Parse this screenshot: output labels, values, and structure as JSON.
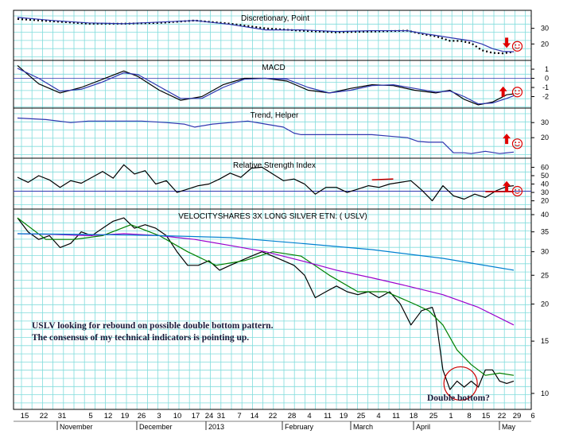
{
  "chart_data": [
    {
      "type": "line",
      "title": "Discretionary, Point",
      "y_ticks": [
        20,
        30
      ],
      "ylim": [
        11,
        40
      ],
      "series": [
        {
          "role": "dotted",
          "color": "#000000",
          "x": [
            0,
            10,
            20,
            30,
            40,
            50,
            60,
            70,
            80,
            90,
            100,
            110,
            115,
            118,
            122,
            125,
            128,
            131,
            134,
            137,
            140
          ],
          "y": [
            36,
            34.5,
            33,
            33,
            33.5,
            35,
            33,
            30,
            28.5,
            27.5,
            28,
            28.5,
            26,
            25,
            22,
            22,
            20.5,
            16,
            14.3,
            14,
            15
          ]
        },
        {
          "role": "line",
          "color": "#2f36b0",
          "x": [
            0,
            10,
            20,
            30,
            40,
            50,
            60,
            70,
            80,
            90,
            100,
            110,
            115,
            118,
            122,
            125,
            128,
            131,
            134,
            137,
            140
          ],
          "y": [
            37,
            35,
            33.5,
            33,
            34,
            35,
            32.5,
            29,
            29,
            28,
            28.5,
            28.5,
            26.5,
            25.5,
            24,
            23,
            22,
            20,
            17,
            15.2,
            15
          ]
        }
      ],
      "markers": [
        {
          "type": "down-arrow",
          "x": 138,
          "y": 21
        },
        {
          "type": "smiley",
          "x": 141,
          "y": 18.5
        }
      ]
    },
    {
      "type": "line",
      "title": "MACD",
      "y_ticks": [
        -2,
        -1,
        0,
        1
      ],
      "ylim": [
        -3,
        1.7
      ],
      "series": [
        {
          "role": "macd",
          "color": "#000000",
          "x": [
            0,
            6,
            12,
            18,
            24,
            30,
            34,
            40,
            46,
            52,
            58,
            64,
            70,
            76,
            82,
            88,
            94,
            100,
            106,
            112,
            118,
            122,
            126,
            130,
            134,
            138,
            140
          ],
          "y": [
            1.4,
            -0.6,
            -1.6,
            -1.0,
            -0.1,
            0.8,
            0.2,
            -1.3,
            -2.4,
            -2.0,
            -0.7,
            0.0,
            0.0,
            -0.3,
            -1.3,
            -1.6,
            -1.1,
            -0.7,
            -0.8,
            -1.3,
            -1.6,
            -1.3,
            -2.3,
            -2.9,
            -2.6,
            -1.8,
            -1.7
          ]
        },
        {
          "role": "signal",
          "color": "#2f36b0",
          "x": [
            0,
            6,
            12,
            18,
            24,
            30,
            34,
            40,
            46,
            52,
            58,
            64,
            70,
            76,
            82,
            88,
            94,
            100,
            106,
            112,
            118,
            122,
            126,
            130,
            134,
            138,
            140
          ],
          "y": [
            1.1,
            0.0,
            -1.4,
            -1.2,
            -0.4,
            0.6,
            0.4,
            -0.9,
            -2.2,
            -2.2,
            -1.0,
            -0.1,
            0.0,
            -0.1,
            -1.0,
            -1.6,
            -1.3,
            -0.8,
            -0.7,
            -1.1,
            -1.5,
            -1.4,
            -2.0,
            -2.8,
            -2.7,
            -2.2,
            -1.9
          ]
        }
      ],
      "markers": [
        {
          "type": "up-arrow",
          "x": 137,
          "y": -1.5
        },
        {
          "type": "smiley",
          "x": 141,
          "y": -1.5
        }
      ]
    },
    {
      "type": "line",
      "title": "Trend, Helper",
      "y_ticks": [
        20,
        30
      ],
      "ylim": [
        8,
        38
      ],
      "series": [
        {
          "role": "trend",
          "color": "#2f36b0",
          "x": [
            0,
            8,
            15,
            20,
            28,
            35,
            42,
            47,
            50,
            55,
            60,
            65,
            70,
            75,
            78,
            80,
            85,
            90,
            95,
            100,
            105,
            110,
            113,
            116,
            120,
            123,
            126,
            128,
            132,
            136,
            140
          ],
          "y": [
            33,
            32,
            30,
            31,
            31,
            31,
            30,
            29,
            27,
            29,
            30,
            31,
            29,
            27,
            23,
            22,
            22,
            22,
            22,
            22,
            21,
            20,
            17.5,
            17,
            17,
            10,
            10,
            9.5,
            11,
            9.5,
            10.5
          ]
        }
      ],
      "markers": [
        {
          "type": "up-arrow",
          "x": 138,
          "y": 19
        },
        {
          "type": "smiley",
          "x": 141,
          "y": 16
        }
      ]
    },
    {
      "type": "line",
      "title": "Relative Strength Index",
      "y_ticks": [
        20,
        30,
        40,
        50,
        60
      ],
      "ylim": [
        13,
        68
      ],
      "hline": 31.5,
      "series": [
        {
          "role": "rsi",
          "color": "#000000",
          "x": [
            0,
            3,
            6,
            9,
            12,
            15,
            18,
            21,
            24,
            27,
            30,
            33,
            36,
            39,
            42,
            45,
            48,
            51,
            54,
            57,
            60,
            63,
            66,
            69,
            72,
            75,
            78,
            81,
            84,
            87,
            90,
            93,
            96,
            99,
            102,
            105,
            108,
            111,
            114,
            117,
            120,
            123,
            126,
            129,
            132,
            135,
            138,
            140
          ],
          "y": [
            48,
            42,
            50,
            45,
            36,
            44,
            41,
            48,
            55,
            47,
            63,
            52,
            56,
            40,
            44,
            30,
            34,
            38,
            40,
            46,
            53,
            48,
            59,
            60,
            52,
            44,
            46,
            40,
            28,
            36,
            36,
            30,
            34,
            38,
            36,
            40,
            42,
            44,
            33,
            20,
            38,
            26,
            22,
            28,
            24,
            32,
            37,
            38
          ]
        }
      ],
      "segments": [
        {
          "color": "#cc0000",
          "x": [
            100,
            106
          ],
          "y": [
            45,
            46
          ]
        },
        {
          "color": "#cc0000",
          "x": [
            132,
            140
          ],
          "y": [
            31,
            31
          ]
        }
      ],
      "markers": [
        {
          "type": "up-arrow",
          "x": 138,
          "y": 37
        },
        {
          "type": "smiley",
          "x": 141,
          "y": 31.5
        }
      ]
    },
    {
      "type": "line",
      "title": "VELOCITYSHARES 3X LONG SILVER ETN: ( USLV)",
      "y_ticks": [
        10,
        15,
        20,
        25,
        30,
        35,
        40
      ],
      "ylim": [
        9,
        41
      ],
      "scale": "log",
      "series": [
        {
          "role": "price",
          "color": "#000000",
          "x": [
            0,
            3,
            6,
            9,
            12,
            15,
            18,
            21,
            24,
            27,
            30,
            33,
            36,
            39,
            42,
            45,
            48,
            51,
            54,
            57,
            60,
            63,
            66,
            69,
            72,
            75,
            78,
            81,
            84,
            87,
            90,
            93,
            96,
            99,
            102,
            105,
            108,
            111,
            114,
            117,
            118,
            120,
            122,
            124,
            126,
            128,
            130,
            132,
            134,
            136,
            138,
            140
          ],
          "y": [
            39,
            35,
            33,
            34,
            31,
            32,
            35,
            34,
            36,
            38,
            39,
            36,
            37,
            36,
            34,
            30,
            27,
            27,
            28,
            26,
            27,
            28,
            29,
            30,
            29,
            28,
            27,
            25,
            21,
            22,
            23,
            22,
            21.5,
            22,
            21,
            22,
            20,
            17,
            19,
            19.5,
            18,
            12,
            10.3,
            11,
            10.5,
            11,
            10.5,
            12,
            12,
            11,
            10.8,
            11
          ]
        },
        {
          "role": "sma-short",
          "color": "#008000",
          "x": [
            0,
            8,
            16,
            24,
            32,
            40,
            48,
            56,
            64,
            72,
            80,
            88,
            96,
            104,
            112,
            116,
            120,
            124,
            128,
            132,
            136,
            140
          ],
          "y": [
            39,
            33,
            33,
            34,
            37,
            34,
            30,
            27,
            28,
            30,
            29,
            25,
            22,
            22,
            20,
            19,
            17,
            14,
            12.5,
            11.5,
            11.7,
            11.5
          ]
        },
        {
          "role": "sma-medium",
          "color": "#9a00cc",
          "x": [
            0,
            10,
            20,
            30,
            40,
            50,
            60,
            70,
            80,
            90,
            100,
            110,
            120,
            130,
            140
          ],
          "y": [
            34.5,
            34.3,
            34,
            34.5,
            34,
            33,
            31.5,
            30,
            28,
            26,
            24.5,
            23,
            21.5,
            19.5,
            17
          ]
        },
        {
          "role": "sma-long",
          "color": "#0080d0",
          "x": [
            0,
            20,
            40,
            60,
            80,
            100,
            120,
            140
          ],
          "y": [
            34.5,
            34.3,
            34,
            33.5,
            32,
            30.5,
            28.5,
            26
          ]
        }
      ],
      "circle_center": {
        "x": 125,
        "y": 10.8
      },
      "annotation": [
        "USLV looking for rebound on possible double bottom pattern.",
        "The consensus of my technical indicators is pointing up."
      ],
      "callout": "Double bottom?"
    }
  ],
  "x_axis": {
    "days": [
      "15",
      "22",
      "31",
      "5",
      "12",
      "19",
      "26",
      "3",
      "10",
      "17",
      "24",
      "31",
      "7",
      "14",
      "22",
      "28",
      "4",
      "11",
      "19",
      "25",
      "4",
      "11",
      "18",
      "25",
      "1",
      "8",
      "15",
      "22",
      "29",
      "6"
    ],
    "months": [
      "November",
      "December",
      "2013",
      "February",
      "March",
      "April",
      "May"
    ]
  },
  "colors": {
    "grid": "#80dcdc",
    "arrow": "#e00000",
    "smiley": "#e00000",
    "blue_line": "#2f36b0"
  }
}
